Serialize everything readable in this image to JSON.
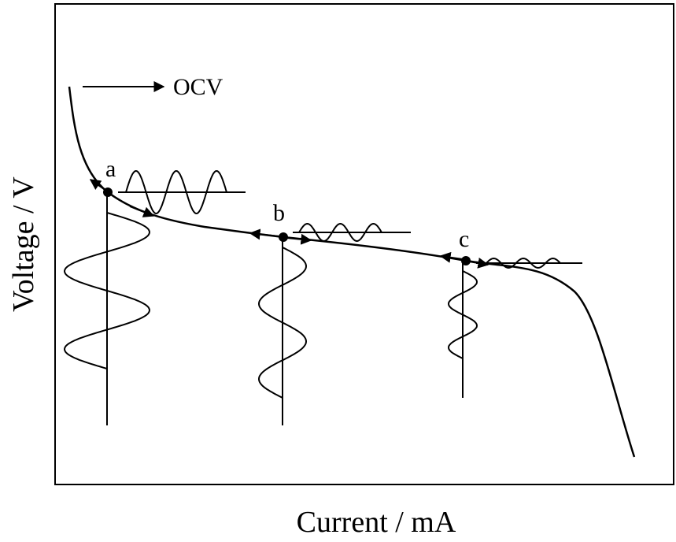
{
  "diagram": {
    "x_axis_label": "Current / mA",
    "y_axis_label": "Voltage / V",
    "ocv_label": "OCV",
    "points": [
      {
        "id": "a",
        "label": "a"
      },
      {
        "id": "b",
        "label": "b"
      },
      {
        "id": "c",
        "label": "c"
      }
    ],
    "colors": {
      "stroke": "#000000",
      "background": "#ffffff"
    }
  }
}
